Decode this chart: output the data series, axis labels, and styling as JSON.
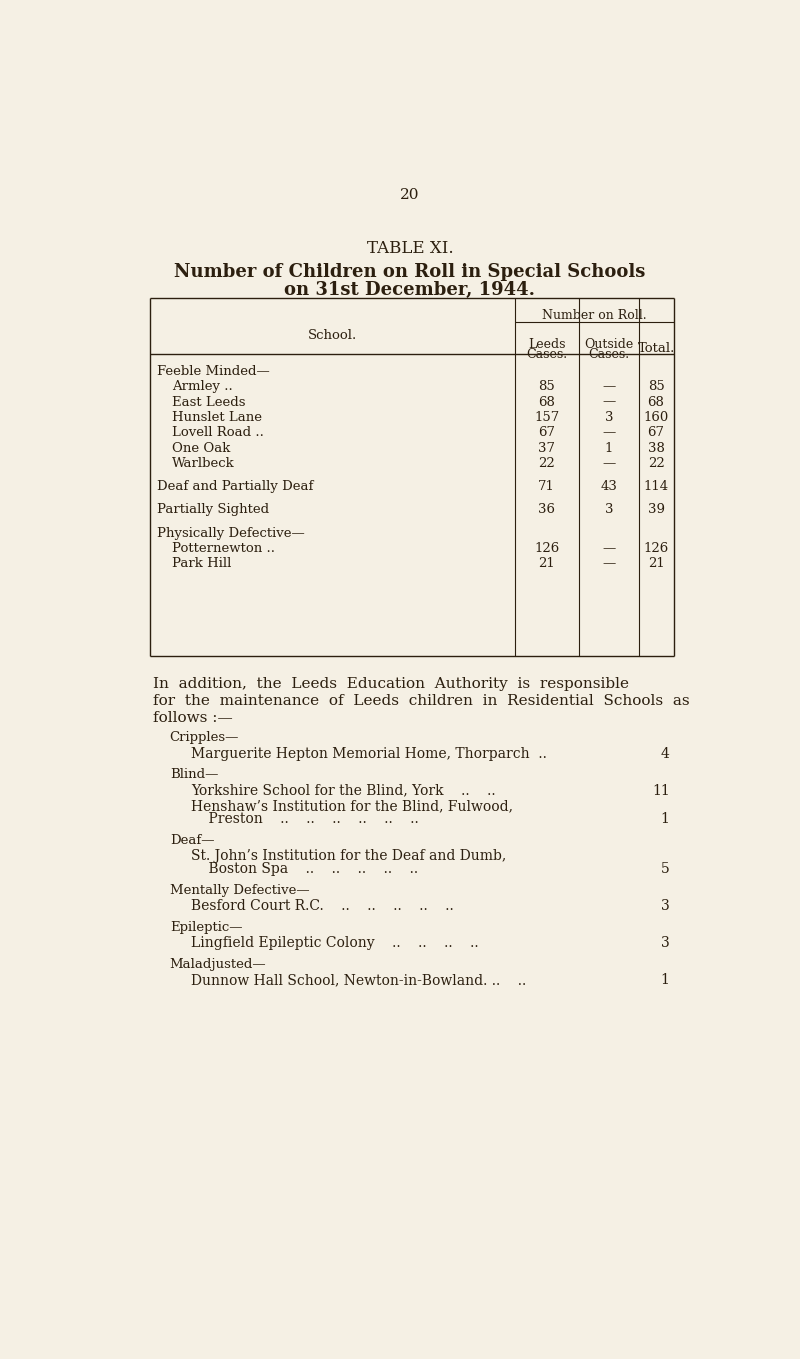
{
  "bg_color": "#f5f0e4",
  "text_color": "#2c1f0f",
  "page_number": "20",
  "table_title_line1": "TABLE XI.",
  "table_title_line2": "Number of Children on Roll in Special Schools",
  "table_title_line3": "on 31st December, 1944.",
  "col_header_school": "School.",
  "col_header_number_on_roll": "Number on Roll.",
  "col_header_leeds_1": "Leeds",
  "col_header_leeds_2": "Cases.",
  "col_header_outside_1": "Outside",
  "col_header_outside_2": "Cases.",
  "col_header_total": "Total.",
  "table_rows": [
    {
      "indent": 0,
      "label": "Feeble Minded—",
      "leeds": "",
      "outside": "",
      "total": "",
      "category": true
    },
    {
      "indent": 1,
      "label": "Armley ..",
      "leeds": "85",
      "outside": "—",
      "total": "85",
      "category": false
    },
    {
      "indent": 1,
      "label": "East Leeds",
      "leeds": "68",
      "outside": "—",
      "total": "68",
      "category": false
    },
    {
      "indent": 1,
      "label": "Hunslet Lane",
      "leeds": "157",
      "outside": "3",
      "total": "160",
      "category": false
    },
    {
      "indent": 1,
      "label": "Lovell Road ..",
      "leeds": "67",
      "outside": "—",
      "total": "67",
      "category": false
    },
    {
      "indent": 1,
      "label": "One Oak",
      "leeds": "37",
      "outside": "1",
      "total": "38",
      "category": false
    },
    {
      "indent": 1,
      "label": "Warlbeck",
      "leeds": "22",
      "outside": "—",
      "total": "22",
      "category": false
    },
    {
      "indent": 0,
      "label": "Deaf and Partially Deaf",
      "leeds": "71",
      "outside": "43",
      "total": "114",
      "category": true
    },
    {
      "indent": 0,
      "label": "Partially Sighted",
      "leeds": "36",
      "outside": "3",
      "total": "39",
      "category": true
    },
    {
      "indent": 0,
      "label": "Physically Defective—",
      "leeds": "",
      "outside": "",
      "total": "",
      "category": true
    },
    {
      "indent": 1,
      "label": "Potternewton ..",
      "leeds": "126",
      "outside": "—",
      "total": "126",
      "category": false
    },
    {
      "indent": 1,
      "label": "Park Hill",
      "leeds": "21",
      "outside": "—",
      "total": "21",
      "category": false
    }
  ],
  "addition_line1": "In  addition,  the  Leeds  Education  Authority  is  responsible",
  "addition_line2": "for  the  maintenance  of  Leeds  children  in  Residential  Schools  as",
  "addition_line3": "follows :—",
  "residential_sections": [
    {
      "category": "Cripples—",
      "entries": [
        {
          "line1": "Marguerite Hepton Memorial Home, Thorparch  ..",
          "line2": "",
          "value": "4"
        }
      ]
    },
    {
      "category": "Blind—",
      "entries": [
        {
          "line1": "Yorkshire School for the Blind, York    ..    ..",
          "line2": "",
          "value": "11"
        },
        {
          "line1": "Henshaw’s Institution for the Blind, Fulwood,",
          "line2": "    Preston    ..    ..    ..    ..    ..    ..",
          "value": "1"
        }
      ]
    },
    {
      "category": "Deaf—",
      "entries": [
        {
          "line1": "St. John’s Institution for the Deaf and Dumb,",
          "line2": "    Boston Spa    ..    ..    ..    ..    ..",
          "value": "5"
        }
      ]
    },
    {
      "category": "Mentally Defective—",
      "entries": [
        {
          "line1": "Besford Court R.C.    ..    ..    ..    ..    ..",
          "line2": "",
          "value": "3"
        }
      ]
    },
    {
      "category": "Epileptic—",
      "entries": [
        {
          "line1": "Lingfield Epileptic Colony    ..    ..    ..    ..",
          "line2": "",
          "value": "3"
        }
      ]
    },
    {
      "category": "Maladjusted—",
      "entries": [
        {
          "line1": "Dunnow Hall School, Newton-in-Bowland. ..    ..",
          "line2": "",
          "value": "1"
        }
      ]
    }
  ]
}
